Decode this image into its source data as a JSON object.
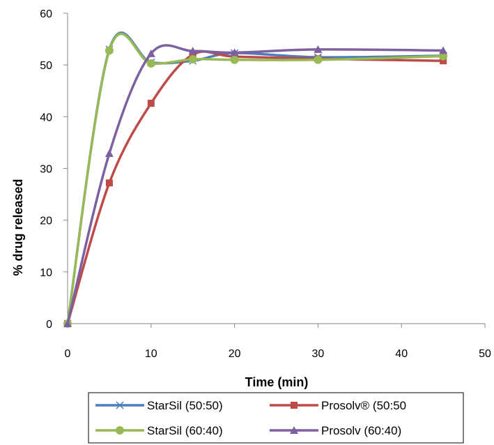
{
  "chart_data": {
    "type": "line",
    "title": "",
    "xlabel": "Time (min)",
    "ylabel": "% drug released",
    "xlim": [
      0,
      50
    ],
    "ylim": [
      0,
      60
    ],
    "x_ticks": [
      0,
      10,
      20,
      30,
      40,
      50
    ],
    "y_ticks": [
      0,
      10,
      20,
      30,
      40,
      50,
      60
    ],
    "grid": false,
    "legend_position": "bottom",
    "x": [
      0,
      5,
      10,
      15,
      20,
      30,
      45
    ],
    "series": [
      {
        "name": "StarSil (50:50)",
        "color": "#4a7ebb",
        "marker": "x-marker",
        "values": [
          0,
          53.0,
          50.5,
          50.8,
          52.3,
          51.5,
          51.8
        ]
      },
      {
        "name": "Prosolv® (50:50",
        "color": "#be4b48",
        "marker": "square-marker",
        "values": [
          0,
          27.2,
          42.6,
          52.0,
          51.6,
          51.2,
          50.8
        ]
      },
      {
        "name": "StarSil (60:40)",
        "color": "#98b954",
        "marker": "circle-marker",
        "values": [
          0,
          52.8,
          50.3,
          51.1,
          51.0,
          51.0,
          51.7
        ]
      },
      {
        "name": "Prosolv (60:40)",
        "color": "#7d60a0",
        "marker": "triangle-marker",
        "values": [
          0,
          32.9,
          52.2,
          52.7,
          52.4,
          53.0,
          52.8
        ]
      }
    ]
  }
}
